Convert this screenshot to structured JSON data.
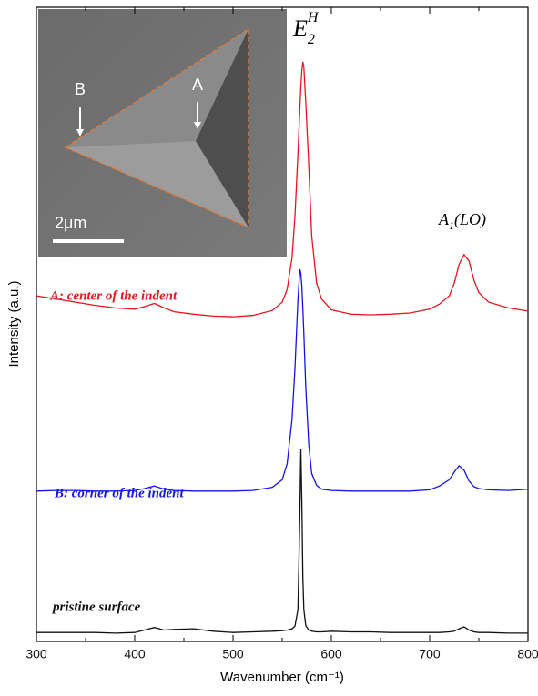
{
  "chart_data": {
    "type": "line",
    "x_label": "Wavenumber (cm⁻¹)",
    "y_label": "Intensity (a.u.)",
    "x": [
      300,
      320,
      340,
      360,
      380,
      400,
      410,
      420,
      430,
      440,
      460,
      480,
      500,
      520,
      540,
      550,
      555,
      560,
      563,
      566,
      568,
      569,
      570,
      571,
      572,
      574,
      577,
      580,
      585,
      590,
      600,
      620,
      640,
      660,
      680,
      700,
      710,
      720,
      725,
      730,
      735,
      740,
      745,
      750,
      760,
      780,
      800
    ],
    "series": [
      {
        "name": "A: center of the indent",
        "color": "#e8141c",
        "values": [
          54.5,
          54.0,
          53.5,
          53.0,
          52.6,
          52.4,
          52.8,
          53.3,
          52.6,
          52.0,
          51.6,
          51.3,
          51.2,
          51.4,
          52.2,
          53.5,
          55.5,
          60.5,
          67,
          77,
          84,
          87.5,
          90,
          91.4,
          90.5,
          85,
          75,
          64,
          56.5,
          54,
          52.3,
          51.6,
          51.5,
          51.6,
          51.8,
          52.4,
          53.2,
          54.5,
          56.5,
          59.5,
          61.0,
          60.0,
          57,
          55,
          53.5,
          52.6,
          52.1
        ]
      },
      {
        "name": "B: corner of the indent",
        "color": "#1414e8",
        "values": [
          23.7,
          23.8,
          23.8,
          23.7,
          23.7,
          23.8,
          24.1,
          24.5,
          24.0,
          23.8,
          23.7,
          23.7,
          23.7,
          23.8,
          24.3,
          25.5,
          28,
          35,
          43,
          54,
          58.7,
          58.0,
          56,
          52.5,
          48.5,
          40,
          31,
          26.5,
          24.6,
          24.0,
          23.8,
          23.7,
          23.7,
          23.7,
          23.7,
          23.9,
          24.5,
          25.5,
          26.7,
          27.7,
          27.0,
          25.3,
          24.4,
          24.1,
          23.9,
          23.8,
          24.0
        ]
      },
      {
        "name": "pristine surface",
        "color": "#111111",
        "values": [
          1.4,
          1.4,
          1.4,
          1.4,
          1.3,
          1.4,
          1.8,
          2.2,
          1.8,
          1.9,
          2.0,
          1.6,
          1.4,
          1.5,
          1.6,
          1.7,
          1.8,
          2.0,
          2.4,
          5,
          20,
          30.4,
          22,
          10,
          5,
          2.5,
          1.8,
          1.6,
          1.5,
          1.5,
          1.6,
          1.5,
          1.5,
          1.4,
          1.4,
          1.4,
          1.4,
          1.5,
          1.6,
          2.0,
          2.3,
          1.8,
          1.5,
          1.4,
          1.4,
          1.3,
          1.3
        ]
      }
    ],
    "xlim": [
      300,
      800
    ],
    "ylim": [
      0,
      100
    ],
    "xticks": [
      300,
      400,
      500,
      600,
      700,
      800
    ],
    "xminor": [
      350,
      450,
      550,
      650,
      750
    ],
    "peak_labels": [
      {
        "base": "E",
        "sub": "2",
        "sup": "H"
      },
      {
        "base": "A",
        "sub": "1",
        "rest": "(LO)"
      }
    ]
  },
  "inset": {
    "point_a": "A",
    "point_b": "B",
    "scale_bar": "2μm"
  }
}
